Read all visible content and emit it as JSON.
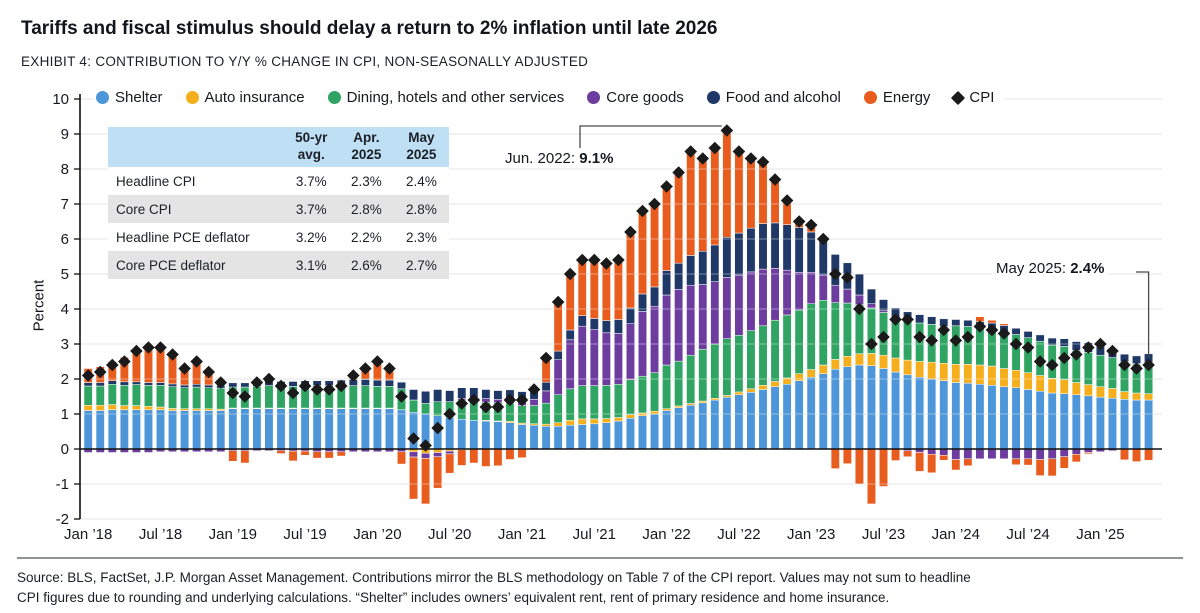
{
  "header": {
    "title": "Tariffs and fiscal stimulus should delay a return to 2% inflation until late 2026",
    "subtitle": "EXHIBIT 4: CONTRIBUTION TO Y/Y % CHANGE IN CPI, NON-SEASONALLY ADJUSTED"
  },
  "colors": {
    "shelter": "#4D96D9",
    "auto_insurance": "#F5AE1C",
    "dining_services": "#2FA463",
    "core_goods": "#6C3D9E",
    "food_alcohol": "#1F3867",
    "energy": "#E85C1E",
    "cpi": "#1A1A1A",
    "gridline": "#d6d6d6",
    "axis": "#111111",
    "table_header_bg": "#bfe0f4",
    "table_alt_row_bg": "#e4e4e4"
  },
  "legend": {
    "items": [
      {
        "label": "Shelter",
        "color": "#4D96D9",
        "marker": "circle"
      },
      {
        "label": "Auto insurance",
        "color": "#F5AE1C",
        "marker": "circle"
      },
      {
        "label": "Dining, hotels and other services",
        "color": "#2FA463",
        "marker": "circle"
      },
      {
        "label": "Core goods",
        "color": "#6C3D9E",
        "marker": "circle"
      },
      {
        "label": "Food and alcohol",
        "color": "#1F3867",
        "marker": "circle"
      },
      {
        "label": "Energy",
        "color": "#E85C1E",
        "marker": "circle"
      },
      {
        "label": "CPI",
        "color": "#1A1A1A",
        "marker": "diamond"
      }
    ]
  },
  "inset_table": {
    "columns": [
      "50-yr avg.",
      "Apr. 2025",
      "May 2025"
    ],
    "rows": [
      {
        "label": "Headline CPI",
        "avg": "3.7%",
        "apr": "2.3%",
        "may": "2.4%"
      },
      {
        "label": "Core CPI",
        "avg": "3.7%",
        "apr": "2.8%",
        "may": "2.8%"
      },
      {
        "label": "Headline PCE deflator",
        "avg": "3.2%",
        "apr": "2.2%",
        "may": "2.3%"
      },
      {
        "label": "Core PCE deflator",
        "avg": "3.1%",
        "apr": "2.6%",
        "may": "2.7%"
      }
    ]
  },
  "annotations": [
    {
      "label": "Jun. 2022:",
      "value": "9.1%"
    },
    {
      "label": "May 2025:",
      "value": "2.4%"
    }
  ],
  "axis": {
    "ylabel": "Percent",
    "y_ticks": [
      10,
      9,
      8,
      7,
      6,
      5,
      4,
      3,
      2,
      1,
      0,
      -1,
      -2
    ],
    "x_ticks": [
      {
        "label": "Jan ’18",
        "index": 0
      },
      {
        "label": "Jul ’18",
        "index": 6
      },
      {
        "label": "Jan ’19",
        "index": 12
      },
      {
        "label": "Jul ’19",
        "index": 18
      },
      {
        "label": "Jan ’20",
        "index": 24
      },
      {
        "label": "Jul ’20",
        "index": 30
      },
      {
        "label": "Jan ’21",
        "index": 36
      },
      {
        "label": "Jul ’21",
        "index": 42
      },
      {
        "label": "Jan ’22",
        "index": 48
      },
      {
        "label": "Jul ’22",
        "index": 54
      },
      {
        "label": "Jan ’23",
        "index": 60
      },
      {
        "label": "Jul ’23",
        "index": 66
      },
      {
        "label": "Jan ’24",
        "index": 72
      },
      {
        "label": "Jul ’24",
        "index": 78
      },
      {
        "label": "Jan ’25",
        "index": 84
      }
    ]
  },
  "source": {
    "line1": "Source: BLS, FactSet, J.P. Morgan Asset Management. Contributions mirror the BLS methodology on Table 7 of the CPI report. Values may not sum to headline",
    "line2": "CPI figures due to rounding and underlying calculations. “Shelter” includes owners’ equivalent rent, rent of primary residence and home insurance."
  },
  "chart_data": {
    "type": "bar",
    "subtype": "stacked-monthly-contributions-with-cpi-diamonds",
    "unit": "percentage points, y/y",
    "start_month": "2018-01",
    "end_month": "2025-05",
    "ylim": [
      -2,
      10
    ],
    "grid": true,
    "series": [
      {
        "key": "shelter",
        "name": "Shelter",
        "values": [
          1.1,
          1.1,
          1.12,
          1.12,
          1.12,
          1.12,
          1.12,
          1.1,
          1.1,
          1.1,
          1.1,
          1.1,
          1.15,
          1.15,
          1.15,
          1.15,
          1.15,
          1.15,
          1.15,
          1.15,
          1.15,
          1.15,
          1.15,
          1.15,
          1.15,
          1.15,
          1.12,
          1.05,
          1.0,
          0.95,
          0.9,
          0.85,
          0.82,
          0.8,
          0.78,
          0.75,
          0.7,
          0.68,
          0.65,
          0.65,
          0.68,
          0.7,
          0.72,
          0.75,
          0.8,
          0.88,
          0.95,
          1.0,
          1.1,
          1.18,
          1.25,
          1.32,
          1.4,
          1.48,
          1.55,
          1.62,
          1.7,
          1.78,
          1.85,
          1.95,
          2.05,
          2.15,
          2.28,
          2.35,
          2.4,
          2.38,
          2.3,
          2.2,
          2.12,
          2.05,
          2.0,
          1.95,
          1.9,
          1.88,
          1.85,
          1.82,
          1.78,
          1.75,
          1.7,
          1.65,
          1.6,
          1.58,
          1.55,
          1.52,
          1.48,
          1.45,
          1.42,
          1.4,
          1.4
        ]
      },
      {
        "key": "auto_insurance",
        "name": "Auto insurance",
        "values": [
          0.15,
          0.15,
          0.15,
          0.12,
          0.12,
          0.1,
          0.08,
          0.06,
          0.05,
          0.05,
          0.05,
          0.04,
          0.02,
          0.02,
          0.02,
          0.02,
          0.02,
          0.02,
          0.02,
          0.02,
          0.02,
          0.02,
          0.02,
          0.02,
          0.02,
          0.02,
          0.0,
          -0.08,
          -0.12,
          -0.1,
          -0.06,
          -0.02,
          0.0,
          0.02,
          0.02,
          0.04,
          0.04,
          0.04,
          0.06,
          0.1,
          0.14,
          0.16,
          0.14,
          0.12,
          0.1,
          0.1,
          0.08,
          0.08,
          0.05,
          0.05,
          0.05,
          0.05,
          0.05,
          0.05,
          0.08,
          0.1,
          0.12,
          0.15,
          0.18,
          0.2,
          0.22,
          0.25,
          0.28,
          0.3,
          0.32,
          0.35,
          0.38,
          0.4,
          0.42,
          0.45,
          0.48,
          0.5,
          0.52,
          0.54,
          0.55,
          0.55,
          0.52,
          0.5,
          0.48,
          0.45,
          0.42,
          0.4,
          0.35,
          0.32,
          0.3,
          0.28,
          0.22,
          0.2,
          0.18
        ]
      },
      {
        "key": "dining_services",
        "name": "Dining, hotels and other services",
        "values": [
          0.55,
          0.55,
          0.58,
          0.58,
          0.6,
          0.6,
          0.62,
          0.62,
          0.6,
          0.62,
          0.6,
          0.6,
          0.6,
          0.6,
          0.62,
          0.64,
          0.62,
          0.62,
          0.64,
          0.64,
          0.64,
          0.64,
          0.64,
          0.64,
          0.62,
          0.62,
          0.6,
          0.35,
          0.3,
          0.4,
          0.45,
          0.55,
          0.55,
          0.52,
          0.52,
          0.52,
          0.5,
          0.52,
          0.6,
          0.8,
          0.9,
          0.95,
          0.95,
          0.95,
          0.95,
          1.0,
          1.05,
          1.1,
          1.25,
          1.28,
          1.38,
          1.48,
          1.55,
          1.62,
          1.62,
          1.66,
          1.7,
          1.75,
          1.8,
          1.82,
          1.88,
          1.85,
          1.62,
          1.52,
          1.4,
          1.3,
          1.22,
          1.15,
          1.12,
          1.1,
          1.08,
          1.05,
          1.1,
          1.08,
          1.06,
          1.05,
          1.05,
          1.02,
          1.0,
          0.98,
          0.95,
          0.95,
          0.92,
          0.92,
          0.9,
          0.88,
          0.85,
          0.82,
          0.85
        ]
      },
      {
        "key": "core_goods",
        "name": "Core goods",
        "values": [
          -0.1,
          -0.1,
          -0.1,
          -0.1,
          -0.1,
          -0.1,
          -0.08,
          -0.08,
          -0.08,
          -0.08,
          -0.08,
          -0.08,
          -0.05,
          -0.05,
          -0.05,
          -0.05,
          -0.05,
          -0.06,
          -0.06,
          -0.08,
          -0.08,
          -0.08,
          -0.08,
          -0.08,
          -0.08,
          -0.08,
          -0.08,
          -0.15,
          -0.15,
          -0.12,
          -0.08,
          0.05,
          0.1,
          0.1,
          0.1,
          0.12,
          0.15,
          0.18,
          0.35,
          1.0,
          1.4,
          1.7,
          1.6,
          1.5,
          1.45,
          1.6,
          1.85,
          1.9,
          2.0,
          2.05,
          2.0,
          1.85,
          1.78,
          1.75,
          1.72,
          1.68,
          1.62,
          1.48,
          1.28,
          1.08,
          0.9,
          0.72,
          0.5,
          0.4,
          0.28,
          0.12,
          0.05,
          0.0,
          -0.05,
          -0.1,
          -0.15,
          -0.18,
          -0.3,
          -0.28,
          -0.28,
          -0.28,
          -0.28,
          -0.28,
          -0.28,
          -0.3,
          -0.28,
          -0.22,
          -0.15,
          -0.1,
          -0.08,
          -0.05,
          0.0,
          0.02,
          0.05
        ]
      },
      {
        "key": "food_alcohol",
        "name": "Food and alcohol",
        "values": [
          0.1,
          0.1,
          0.1,
          0.1,
          0.08,
          0.08,
          0.08,
          0.08,
          0.08,
          0.08,
          0.08,
          0.08,
          0.12,
          0.12,
          0.13,
          0.13,
          0.14,
          0.14,
          0.14,
          0.14,
          0.14,
          0.16,
          0.18,
          0.18,
          0.18,
          0.18,
          0.19,
          0.3,
          0.35,
          0.35,
          0.32,
          0.3,
          0.28,
          0.26,
          0.25,
          0.26,
          0.25,
          0.25,
          0.25,
          0.25,
          0.28,
          0.3,
          0.32,
          0.35,
          0.4,
          0.45,
          0.5,
          0.55,
          0.7,
          0.75,
          0.85,
          0.95,
          1.05,
          1.15,
          1.2,
          1.25,
          1.3,
          1.3,
          1.3,
          1.28,
          1.15,
          1.03,
          0.88,
          0.75,
          0.6,
          0.42,
          0.32,
          0.28,
          0.26,
          0.24,
          0.22,
          0.22,
          0.18,
          0.18,
          0.18,
          0.18,
          0.18,
          0.18,
          0.18,
          0.18,
          0.2,
          0.22,
          0.25,
          0.28,
          0.25,
          0.25,
          0.22,
          0.22,
          0.24
        ]
      },
      {
        "key": "energy",
        "name": "Energy",
        "values": [
          0.4,
          0.45,
          0.55,
          0.7,
          0.9,
          1.05,
          1.05,
          0.9,
          0.55,
          0.7,
          0.45,
          0.15,
          -0.3,
          -0.35,
          0.0,
          0.1,
          -0.08,
          -0.28,
          -0.12,
          -0.18,
          -0.18,
          -0.12,
          0.18,
          0.38,
          0.6,
          0.4,
          -0.35,
          -1.2,
          -1.3,
          -0.9,
          -0.55,
          -0.45,
          -0.4,
          -0.5,
          -0.48,
          -0.3,
          -0.25,
          0.05,
          0.7,
          1.4,
          1.6,
          1.6,
          1.65,
          1.62,
          1.7,
          2.15,
          2.35,
          2.35,
          2.4,
          2.59,
          2.97,
          2.65,
          2.77,
          3.05,
          2.33,
          1.99,
          1.76,
          1.24,
          0.69,
          0.17,
          0.2,
          0.0,
          -0.56,
          -0.42,
          -1.0,
          -1.57,
          -1.07,
          -0.33,
          -0.17,
          -0.54,
          -0.53,
          -0.14,
          -0.3,
          -0.2,
          0.14,
          0.08,
          0.05,
          -0.17,
          -0.18,
          -0.46,
          -0.49,
          -0.33,
          -0.22,
          -0.04,
          0.15,
          -0.01,
          -0.31,
          -0.36,
          -0.32
        ]
      }
    ],
    "cpi": {
      "name": "CPI",
      "values": [
        2.1,
        2.2,
        2.4,
        2.5,
        2.8,
        2.9,
        2.9,
        2.7,
        2.3,
        2.5,
        2.2,
        1.9,
        1.6,
        1.5,
        1.9,
        2.0,
        1.8,
        1.6,
        1.8,
        1.7,
        1.7,
        1.8,
        2.1,
        2.3,
        2.5,
        2.3,
        1.5,
        0.3,
        0.1,
        0.6,
        1.0,
        1.3,
        1.4,
        1.2,
        1.2,
        1.4,
        1.4,
        1.7,
        2.6,
        4.2,
        5.0,
        5.4,
        5.4,
        5.3,
        5.4,
        6.2,
        6.8,
        7.0,
        7.5,
        7.9,
        8.5,
        8.3,
        8.6,
        9.1,
        8.5,
        8.3,
        8.2,
        7.7,
        7.1,
        6.5,
        6.4,
        6.0,
        5.0,
        4.9,
        4.0,
        3.0,
        3.2,
        3.7,
        3.7,
        3.2,
        3.1,
        3.4,
        3.1,
        3.2,
        3.5,
        3.4,
        3.3,
        3.0,
        2.9,
        2.5,
        2.4,
        2.6,
        2.7,
        2.9,
        3.0,
        2.8,
        2.4,
        2.3,
        2.4
      ]
    }
  }
}
